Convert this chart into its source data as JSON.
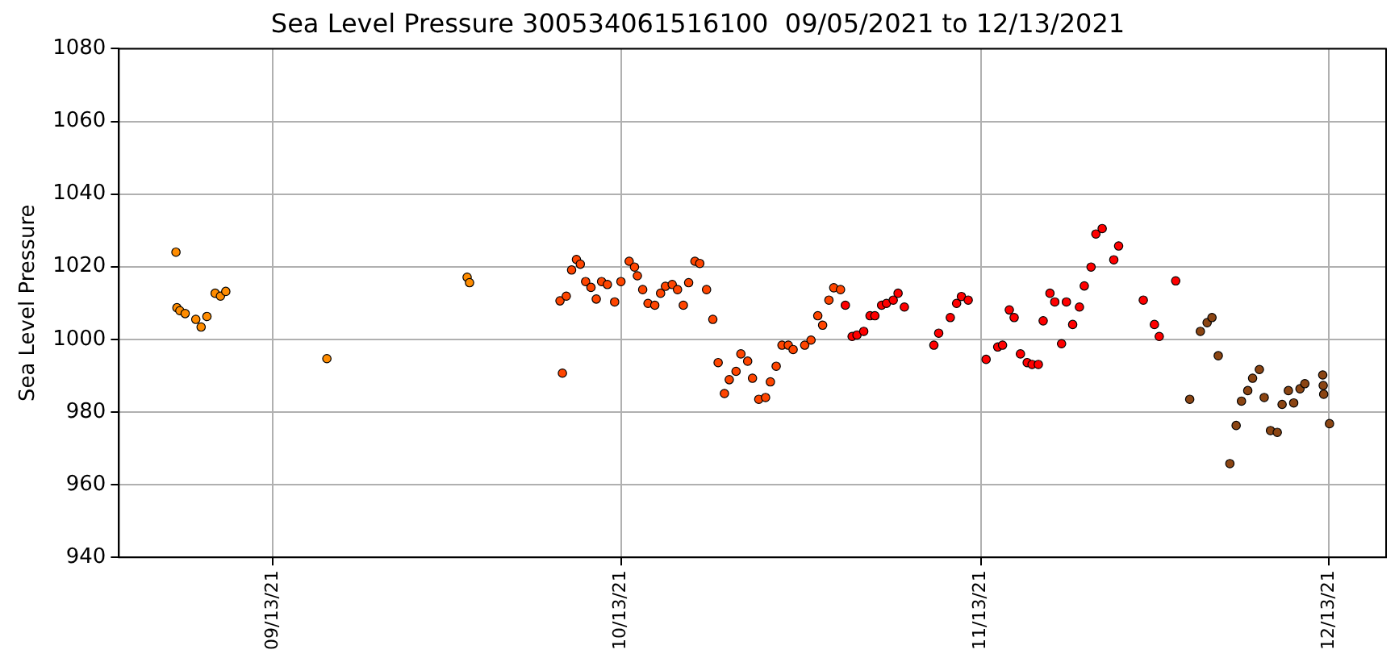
{
  "chart_data": {
    "type": "scatter",
    "title": "Sea Level Pressure 300534061516100  09/05/2021 to 12/13/2021",
    "ylabel": "Sea Level Pressure",
    "xlim": [
      "2021-08-30T18:00",
      "2021-12-17T22:00"
    ],
    "xticks": [
      {
        "value": "2021-09-13",
        "label": "09/13/21"
      },
      {
        "value": "2021-10-13",
        "label": "10/13/21"
      },
      {
        "value": "2021-11-13",
        "label": "11/13/21"
      },
      {
        "value": "2021-12-13",
        "label": "12/13/21"
      }
    ],
    "ylim": [
      940,
      1080
    ],
    "yticks": [
      940,
      960,
      980,
      1000,
      1020,
      1040,
      1060,
      1080
    ],
    "grid": true,
    "legend": false,
    "marker": "circle",
    "series": [
      {
        "color": "#ff8c00",
        "x": [
          "2021-09-04T16:00",
          "2021-09-04T18:00",
          "2021-09-05T00:00",
          "2021-09-05T11:00",
          "2021-09-06T09:00",
          "2021-09-06T20:00",
          "2021-09-07T08:00",
          "2021-09-08T01:00",
          "2021-09-08T12:00",
          "2021-09-08T23:00",
          "2021-09-17T16:00",
          "2021-09-29T18:00",
          "2021-09-29T23:00"
        ],
        "values": [
          1024,
          1008.7,
          1007.9,
          1007.1,
          1005.5,
          1003.4,
          1006.3,
          1012.7,
          1011.9,
          1013.2,
          994.7,
          1017.1,
          1015.6
        ]
      },
      {
        "color": "#ff4500",
        "x": [
          "2021-10-07T18:00",
          "2021-10-07T23:00",
          "2021-10-08T07:00",
          "2021-10-08T18:00",
          "2021-10-09T04:00",
          "2021-10-09T12:00",
          "2021-10-09T23:00",
          "2021-10-10T10:00",
          "2021-10-10T21:00",
          "2021-10-11T08:00",
          "2021-10-11T20:00",
          "2021-10-12T11:00",
          "2021-10-13T00:00",
          "2021-10-13T17:00",
          "2021-10-14T04:00",
          "2021-10-14T10:00",
          "2021-10-14T21:00",
          "2021-10-15T08:00",
          "2021-10-15T22:00",
          "2021-10-16T10:00",
          "2021-10-16T20:00",
          "2021-10-17T10:00",
          "2021-10-17T21:00",
          "2021-10-18T09:00",
          "2021-10-18T20:00",
          "2021-10-19T09:00",
          "2021-10-19T19:00",
          "2021-10-20T09:00",
          "2021-10-20T22:00",
          "2021-10-21T09:00",
          "2021-10-21T22:00",
          "2021-10-22T08:00",
          "2021-10-22T22:00",
          "2021-10-23T08:00",
          "2021-10-23T22:00",
          "2021-10-24T08:00",
          "2021-10-24T21:00",
          "2021-10-25T11:00",
          "2021-10-25T21:00",
          "2021-10-26T09:00",
          "2021-10-26T21:00",
          "2021-10-27T10:00",
          "2021-10-27T20:00",
          "2021-10-28T20:00",
          "2021-10-29T09:00",
          "2021-10-29T23:00",
          "2021-10-30T09:00",
          "2021-10-30T22:00",
          "2021-10-31T08:00",
          "2021-10-31T22:00"
        ],
        "values": [
          1010.6,
          990.7,
          1011.9,
          1019.1,
          1022,
          1020.7,
          1015.9,
          1014.3,
          1011.1,
          1015.9,
          1015.1,
          1010.3,
          1015.9,
          1021.5,
          1019.9,
          1017.5,
          1013.7,
          1009.9,
          1009.4,
          1012.7,
          1014.6,
          1015.1,
          1013.7,
          1009.4,
          1015.6,
          1021.5,
          1020.9,
          1013.7,
          1005.5,
          993.6,
          985.1,
          988.9,
          991.2,
          996,
          994,
          989.3,
          983.5,
          984,
          988.3,
          992.6,
          998.4,
          998.4,
          997.2,
          998.4,
          999.8,
          1006.5,
          1003.9,
          1010.8,
          1014.2,
          1013.7
        ]
      },
      {
        "color": "#ff0000",
        "x": [
          "2021-11-01T08:00",
          "2021-11-01T22:00",
          "2021-11-02T08:00",
          "2021-11-02T22:00",
          "2021-11-03T11:00",
          "2021-11-03T21:00",
          "2021-11-04T11:00",
          "2021-11-04T21:00",
          "2021-11-05T11:00",
          "2021-11-05T21:00",
          "2021-11-06T10:00",
          "2021-11-08T23:00",
          "2021-11-09T09:00",
          "2021-11-10T09:00",
          "2021-11-10T22:00",
          "2021-11-11T08:00",
          "2021-11-11T22:00",
          "2021-11-13T11:00",
          "2021-11-14T11:00",
          "2021-11-14T21:00",
          "2021-11-15T11:00",
          "2021-11-15T21:00",
          "2021-11-16T10:00",
          "2021-11-17T00:00",
          "2021-11-17T10:00",
          "2021-11-17T23:00",
          "2021-11-18T09:00",
          "2021-11-18T23:00",
          "2021-11-19T09:00",
          "2021-11-19T23:00",
          "2021-11-20T09:00",
          "2021-11-20T22:00",
          "2021-11-21T12:00",
          "2021-11-21T22:00",
          "2021-11-22T12:00",
          "2021-11-22T22:00",
          "2021-11-23T11:00",
          "2021-11-24T11:00",
          "2021-11-24T21:00",
          "2021-11-27T00:00",
          "2021-11-27T23:00",
          "2021-11-28T09:00",
          "2021-11-29T19:00"
        ],
        "values": [
          1009.4,
          1000.8,
          1001.2,
          1002.2,
          1006.5,
          1006.5,
          1009.4,
          1009.9,
          1010.8,
          1012.7,
          1008.9,
          998.4,
          1001.7,
          1006,
          1009.9,
          1011.8,
          1010.8,
          994.5,
          997.9,
          998.4,
          1008.1,
          1006,
          996,
          993.6,
          993.1,
          993.1,
          1005.1,
          1012.7,
          1010.3,
          998.8,
          1010.3,
          1004.1,
          1008.9,
          1014.7,
          1019.9,
          1029,
          1030.5,
          1021.9,
          1025.7,
          1010.8,
          1004.1,
          1000.8,
          1016.1
        ]
      },
      {
        "color": "#8b4513",
        "x": [
          "2021-12-01T00:00",
          "2021-12-01T22:00",
          "2021-12-02T12:00",
          "2021-12-02T22:00",
          "2021-12-03T11:00",
          "2021-12-04T11:00",
          "2021-12-05T00:00",
          "2021-12-05T11:00",
          "2021-12-06T00:00",
          "2021-12-06T10:00",
          "2021-12-07T00:00",
          "2021-12-07T10:00",
          "2021-12-07T23:00",
          "2021-12-08T13:00",
          "2021-12-08T23:00",
          "2021-12-09T12:00",
          "2021-12-09T23:00",
          "2021-12-10T12:00",
          "2021-12-10T22:00",
          "2021-12-12T11:00",
          "2021-12-12T12:00",
          "2021-12-12T13:00",
          "2021-12-13T01:00"
        ],
        "values": [
          983.5,
          1002.2,
          1004.6,
          1006,
          995.5,
          965.8,
          976.3,
          983,
          985.9,
          989.3,
          991.7,
          984,
          974.9,
          974.4,
          982.1,
          985.9,
          982.5,
          986.4,
          987.8,
          990.2,
          987.3,
          984.9,
          976.8
        ]
      }
    ]
  }
}
